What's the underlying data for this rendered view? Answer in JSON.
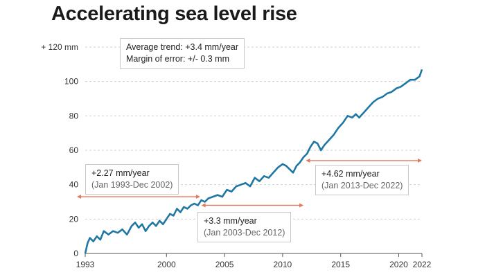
{
  "title": "Accelerating sea level rise",
  "trend_box": {
    "line1": "Average trend:  +3.4 mm/year",
    "line2": "Margin of error: +/- 0.3 mm"
  },
  "colors": {
    "line": "#1f77a4",
    "arrow": "#e07a5f",
    "grid": "#cfcfcf"
  },
  "chart_data": {
    "type": "line",
    "title": "Accelerating sea level rise",
    "xlabel": "",
    "ylabel": "",
    "xlim": [
      1993,
      2022
    ],
    "ylim": [
      0,
      120
    ],
    "grid": true,
    "x_ticks": [
      1993,
      2000,
      2005,
      2010,
      2015,
      2020,
      2022
    ],
    "y_ticks": [
      {
        "value": 0,
        "label": "0"
      },
      {
        "value": 20,
        "label": "20"
      },
      {
        "value": 40,
        "label": "40"
      },
      {
        "value": 60,
        "label": "60"
      },
      {
        "value": 80,
        "label": "80"
      },
      {
        "value": 100,
        "label": "100"
      },
      {
        "value": 120,
        "label": "+ 120 mm"
      }
    ],
    "series": [
      {
        "x": [
          1993.0,
          1993.2,
          1993.4,
          1993.7,
          1994.0,
          1994.3,
          1994.6,
          1995.0,
          1995.4,
          1995.8,
          1996.2,
          1996.6,
          1997.0,
          1997.3,
          1997.6,
          1997.9,
          1998.2,
          1998.5,
          1998.8,
          1999.1,
          1999.4,
          1999.7,
          2000.0,
          2000.3,
          2000.6,
          2000.9,
          2001.2,
          2001.5,
          2001.8,
          2002.1,
          2002.4,
          2002.7,
          2003.0,
          2003.3,
          2003.6,
          2004.0,
          2004.4,
          2004.8,
          2005.2,
          2005.6,
          2006.0,
          2006.4,
          2006.8,
          2007.2,
          2007.6,
          2008.0,
          2008.4,
          2008.8,
          2009.2,
          2009.6,
          2010.0,
          2010.3,
          2010.6,
          2010.9,
          2011.2,
          2011.5,
          2011.8,
          2012.1,
          2012.4,
          2012.7,
          2013.0,
          2013.3,
          2013.6,
          2014.0,
          2014.4,
          2014.8,
          2015.2,
          2015.6,
          2016.0,
          2016.3,
          2016.6,
          2017.0,
          2017.4,
          2017.8,
          2018.2,
          2018.6,
          2019.0,
          2019.4,
          2019.8,
          2020.2,
          2020.6,
          2021.0,
          2021.4,
          2021.8,
          2022.0
        ],
        "y": [
          0,
          6,
          9,
          7,
          10,
          8,
          13,
          11,
          13,
          12,
          14,
          11,
          16,
          18,
          15,
          17,
          13,
          16,
          18,
          16,
          19,
          17,
          20,
          23,
          22,
          26,
          24,
          27,
          26,
          28,
          29,
          28,
          31,
          30,
          32,
          33,
          34,
          33,
          37,
          36,
          39,
          40,
          41,
          39,
          44,
          42,
          45,
          44,
          47,
          50,
          52,
          51,
          49,
          47,
          51,
          53,
          56,
          58,
          62,
          65,
          64,
          60,
          63,
          66,
          69,
          73,
          76,
          80,
          79,
          81,
          79,
          82,
          85,
          88,
          90,
          91,
          93,
          94,
          96,
          97,
          99,
          101,
          101,
          103,
          107
        ]
      }
    ],
    "annotations": [
      {
        "label": "+2.27 mm/year",
        "period": "(Jan 1993-Dec 2002)",
        "x_start": 1993,
        "x_end": 2002.9,
        "y": 33
      },
      {
        "label": "+3.3 mm/year",
        "period": "(Jan 2003-Dec 2012)",
        "x_start": 2003,
        "x_end": 2011.8,
        "y": 28
      },
      {
        "label": "+4.62 mm/year",
        "period": "(Jan 2013-Dec 2022)",
        "x_start": 2012,
        "x_end": 2022,
        "y": 54
      }
    ]
  }
}
